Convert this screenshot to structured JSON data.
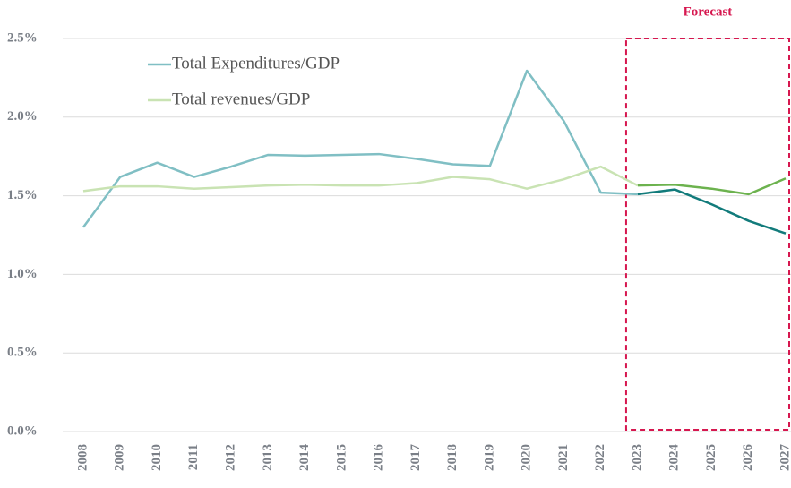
{
  "chart_data": {
    "type": "line",
    "annotation": "Forecast",
    "forecast_from": "2023",
    "categories": [
      "2008",
      "2009",
      "2010",
      "2011",
      "2012",
      "2013",
      "2014",
      "2015",
      "2016",
      "2017",
      "2018",
      "2019",
      "2020",
      "2021",
      "2022",
      "2023",
      "2024",
      "2025",
      "2026",
      "2027"
    ],
    "series": [
      {
        "name": "Total Expenditures/GDP",
        "color": "#80bfc4",
        "forecast_color": "#127b7b",
        "values": [
          1.3,
          1.62,
          1.71,
          1.62,
          1.685,
          1.76,
          1.755,
          1.76,
          1.765,
          1.735,
          1.7,
          1.69,
          2.295,
          1.975,
          1.52,
          1.51,
          1.54,
          1.445,
          1.34,
          1.26
        ]
      },
      {
        "name": "Total revenues/GDP",
        "color": "#c9e3b3",
        "forecast_color": "#6cb24e",
        "values": [
          1.53,
          1.56,
          1.56,
          1.545,
          1.555,
          1.565,
          1.57,
          1.565,
          1.565,
          1.58,
          1.62,
          1.605,
          1.545,
          1.605,
          1.685,
          1.565,
          1.57,
          1.545,
          1.51,
          1.61
        ]
      }
    ],
    "ylim": [
      0,
      2.5
    ],
    "yticks": [
      {
        "value": 0,
        "label": "0.0%"
      },
      {
        "value": 0.5,
        "label": "0.5%"
      },
      {
        "value": 1,
        "label": "1.0%"
      },
      {
        "value": 1.5,
        "label": "1.5%"
      },
      {
        "value": 2,
        "label": "2.0%"
      },
      {
        "value": 2.5,
        "label": "2.5%"
      }
    ],
    "grid": true
  }
}
